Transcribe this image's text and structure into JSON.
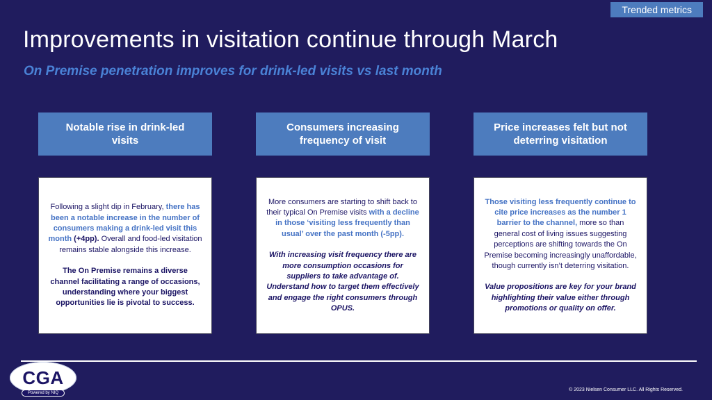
{
  "badge": {
    "label": "Trended metrics"
  },
  "title": "Improvements in visitation continue through March",
  "subtitle": "On Premise penetration improves for drink-led visits vs last month",
  "cards": [
    {
      "header": "Notable rise in drink-led visits",
      "paragraphs": [
        {
          "segments": [
            {
              "text": "Following a slight dip in February, ",
              "style": "normal"
            },
            {
              "text": "there has been a notable increase in the number of consumers making a drink-led visit this month ",
              "style": "accent"
            },
            {
              "text": "(+4pp).",
              "style": "bold"
            },
            {
              "text": " Overall and food-led visitation remains stable alongside this increase.",
              "style": "normal"
            }
          ]
        },
        {
          "segments": [
            {
              "text": "The On Premise remains a diverse channel facilitating a range of occasions, understanding where your biggest opportunities lie is pivotal to success.",
              "style": "bold"
            }
          ]
        }
      ]
    },
    {
      "header": "Consumers increasing frequency of visit",
      "paragraphs": [
        {
          "segments": [
            {
              "text": "More consumers are starting to shift back to their typical On Premise visits ",
              "style": "normal"
            },
            {
              "text": "with a decline in those ‘visiting less frequently than usual’ over the past month (-5pp).",
              "style": "accent"
            }
          ]
        },
        {
          "segments": [
            {
              "text": "With increasing visit frequency there are more consumption occasions for suppliers to take advantage of. Understand how to target them effectively and engage the right consumers through OPUS.",
              "style": "bold-italic"
            }
          ]
        }
      ]
    },
    {
      "header": "Price increases felt but not deterring visitation",
      "paragraphs": [
        {
          "segments": [
            {
              "text": "Those visiting less frequently continue to cite price increases as the number 1 barrier to the channel,",
              "style": "accent"
            },
            {
              "text": " more so than general cost of living issues suggesting perceptions are shifting towards the On Premise becoming increasingly unaffordable, though currently isn’t deterring visitation.",
              "style": "normal"
            }
          ]
        },
        {
          "segments": [
            {
              "text": "Value propositions are key for your brand highlighting their value either through promotions or quality on offer.",
              "style": "bold-italic"
            }
          ]
        }
      ]
    }
  ],
  "footer": {
    "logo_text": "CGA",
    "logo_subtext": "Powered by NIQ",
    "copyright": "© 2023 Nielsen Consumer LLC. All Rights Reserved."
  },
  "colors": {
    "background": "#201c5e",
    "header_box": "#4d7cbe",
    "accent": "#4472c4",
    "subtitle": "#4a82d6",
    "card_text": "#1b1464"
  }
}
